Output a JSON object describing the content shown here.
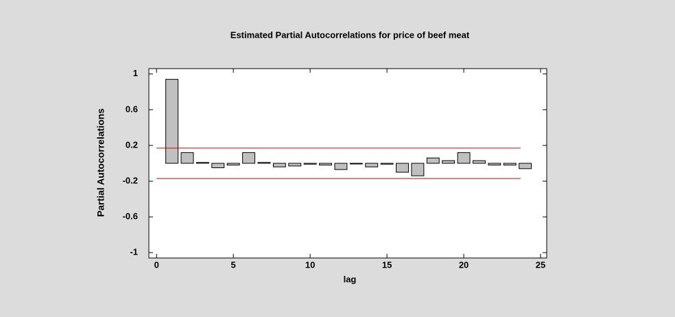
{
  "chart_data": {
    "type": "bar",
    "title": "Estimated Partial Autocorrelations for price of beef meat",
    "x_label": "lag",
    "y_label": "Partial Autocorrelations",
    "x": [
      1,
      2,
      3,
      4,
      5,
      6,
      7,
      8,
      9,
      10,
      11,
      12,
      13,
      14,
      15,
      16,
      17,
      18,
      19,
      20,
      21,
      22,
      23,
      24
    ],
    "values": [
      0.94,
      0.12,
      0.01,
      -0.05,
      -0.02,
      0.12,
      0.01,
      -0.04,
      -0.03,
      -0.01,
      -0.02,
      -0.07,
      0.0,
      -0.04,
      -0.01,
      -0.1,
      -0.14,
      0.06,
      0.03,
      0.12,
      0.03,
      -0.02,
      -0.02,
      -0.06
    ],
    "color": "#c0c0c0",
    "limit_lines": [
      {
        "color": "#e00000",
        "x": [
          0,
          23.7
        ],
        "values": [
          0.17,
          0.17
        ]
      },
      {
        "color": "#e00000",
        "x": [
          0,
          23.7
        ],
        "values": [
          -0.17,
          -0.17
        ]
      }
    ],
    "xlim": [
      -0.5,
      25.4
    ],
    "xticks": [
      0,
      5,
      10,
      15,
      20,
      25
    ],
    "ylim": [
      -1.06,
      1.06
    ],
    "yticks": [
      1,
      0.6,
      0.2,
      -0.2,
      -0.6,
      -1
    ]
  }
}
